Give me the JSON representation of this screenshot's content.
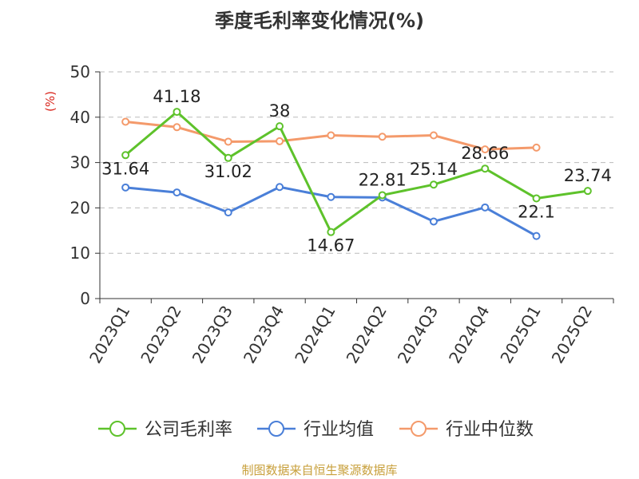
{
  "footer": "制图数据来自恒生聚源数据库",
  "chart_data": {
    "type": "line",
    "title": "季度毛利率变化情况(%)",
    "ylabel": "(%)",
    "xlabel": "",
    "ylim": [
      0,
      50
    ],
    "yticks": [
      0,
      10,
      20,
      30,
      40,
      50
    ],
    "grid": true,
    "legend_position": "bottom",
    "categories": [
      "2023Q1",
      "2023Q2",
      "2023Q3",
      "2023Q4",
      "2024Q1",
      "2024Q2",
      "2024Q3",
      "2024Q4",
      "2025Q1",
      "2025Q2"
    ],
    "series": [
      {
        "name": "公司毛利率",
        "color": "#5ec22b",
        "show_labels": true,
        "values": [
          31.64,
          41.18,
          31.02,
          38,
          14.67,
          22.81,
          25.14,
          28.66,
          22.1,
          23.74
        ]
      },
      {
        "name": "行业均值",
        "color": "#4a7fd8",
        "show_labels": false,
        "values": [
          24.5,
          23.4,
          19.0,
          24.6,
          22.4,
          22.3,
          17.0,
          20.1,
          13.8,
          null
        ]
      },
      {
        "name": "行业中位数",
        "color": "#f49a6b",
        "show_labels": false,
        "values": [
          39.0,
          37.8,
          34.6,
          34.7,
          36.0,
          35.7,
          36.0,
          32.9,
          33.3,
          null
        ]
      }
    ]
  }
}
